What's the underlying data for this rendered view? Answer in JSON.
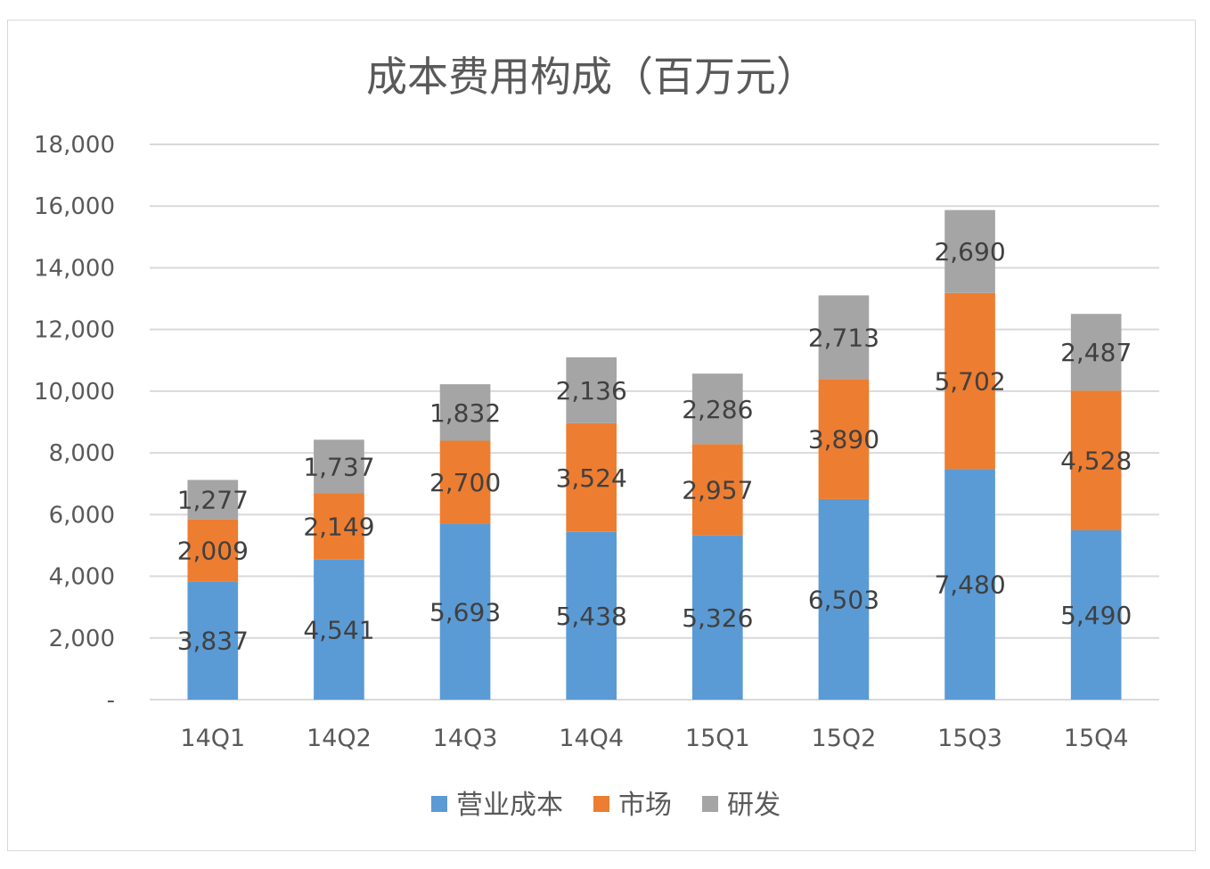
{
  "chart_data": {
    "type": "bar",
    "stacked": true,
    "title": "成本费用构成（百万元）",
    "xlabel": "",
    "ylabel": "",
    "ylim": [
      0,
      18000
    ],
    "yticks": [
      0,
      2000,
      4000,
      6000,
      8000,
      10000,
      12000,
      14000,
      16000,
      18000
    ],
    "ytick_labels": [
      "-",
      "2,000",
      "4,000",
      "6,000",
      "8,000",
      "10,000",
      "12,000",
      "14,000",
      "16,000",
      "18,000"
    ],
    "grid": true,
    "legend_position": "bottom",
    "categories": [
      "14Q1",
      "14Q2",
      "14Q3",
      "14Q4",
      "15Q1",
      "15Q2",
      "15Q3",
      "15Q4"
    ],
    "series": [
      {
        "name": "营业成本",
        "color": "#5b9bd5",
        "values": [
          3837,
          4541,
          5693,
          5438,
          5326,
          6503,
          7480,
          5490
        ],
        "labels": [
          "3,837",
          "4,541",
          "5,693",
          "5,438",
          "5,326",
          "6,503",
          "7,480",
          "5,490"
        ]
      },
      {
        "name": "市场",
        "color": "#ed7d31",
        "values": [
          2009,
          2149,
          2700,
          3524,
          2957,
          3890,
          5702,
          4528
        ],
        "labels": [
          "2,009",
          "2,149",
          "2,700",
          "3,524",
          "2,957",
          "3,890",
          "5,702",
          "4,528"
        ]
      },
      {
        "name": "研发",
        "color": "#a5a5a5",
        "values": [
          1277,
          1737,
          1832,
          2136,
          2286,
          2713,
          2690,
          2487
        ],
        "labels": [
          "1,277",
          "1,737",
          "1,832",
          "2,136",
          "2,286",
          "2,713",
          "2,690",
          "2,487"
        ]
      }
    ]
  }
}
